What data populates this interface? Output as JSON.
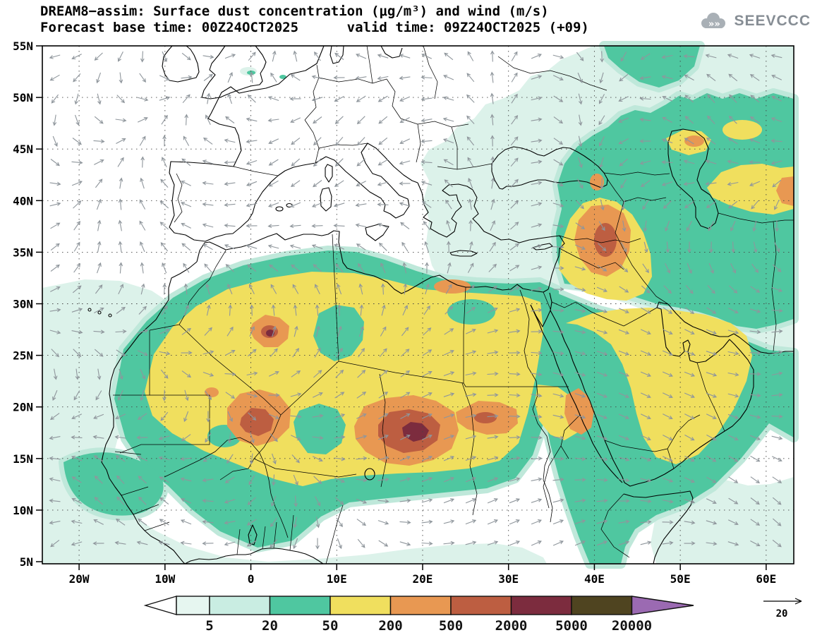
{
  "header": {
    "title_line1": "DREAM8−assim: Surface dust concentration (μg/m³) and wind (m/s)",
    "title_line2": "Forecast base time: 00Z24OCT2025      valid time: 09Z24OCT2025 (+09)",
    "logo_text": "SEEVCCC"
  },
  "axes": {
    "lat_labels": [
      "55N",
      "50N",
      "45N",
      "40N",
      "35N",
      "30N",
      "25N",
      "20N",
      "15N",
      "10N",
      "5N"
    ],
    "lon_labels": [
      "20W",
      "10W",
      "0",
      "10E",
      "20E",
      "30E",
      "40E",
      "50E",
      "60E"
    ]
  },
  "legend": {
    "levels": [
      "5",
      "20",
      "50",
      "200",
      "500",
      "2000",
      "5000",
      "20000"
    ],
    "colors": [
      "#e6f6f0",
      "#c9ede2",
      "#4fc7a0",
      "#f0df5e",
      "#e89852",
      "#bd5e41",
      "#7c2c3e",
      "#4f4420"
    ],
    "arrow_left_color": "#ffffff",
    "arrow_right_color": "#9b6ab2"
  },
  "wind_reference": {
    "value": "20"
  },
  "chart_data": {
    "type": "filled_contour_map",
    "field": "Surface dust concentration",
    "units": "μg/m³",
    "wind_units": "m/s",
    "model": "DREAM8-assim",
    "forecast_base_time": "00Z24OCT2025",
    "valid_time": "09Z24OCT2025",
    "forecast_hour": 9,
    "lon_range": [
      -25,
      63
    ],
    "lat_range": [
      5,
      55
    ],
    "graticule": {
      "lat_step_deg": 5,
      "lon_step_deg": 10
    },
    "contour_levels": [
      5,
      20,
      50,
      200,
      500,
      2000,
      5000,
      20000
    ],
    "palette": [
      "#ffffff",
      "#e6f6f0",
      "#c9ede2",
      "#4fc7a0",
      "#f0df5e",
      "#e89852",
      "#bd5e41",
      "#7c2c3e",
      "#4f4420",
      "#9b6ab2"
    ],
    "wind_reference_ms": 20,
    "legend_position": "bottom",
    "notable_maxima": [
      {
        "area": "southern Algeria / northern Mali (about 0-4E, 16-20N)",
        "concentration_range": "2000-5000"
      },
      {
        "area": "Chad / Niger (about 14-20E, 14-18N)",
        "concentration_range": "2000-5000"
      },
      {
        "area": "central Algeria (about 2E, 26N)",
        "concentration_range": "2000-5000"
      },
      {
        "area": "Iraq / Syria (about 38-43E, 29-35N)",
        "concentration_range": "500-2000"
      }
    ],
    "broad_features": [
      "Yellow band (50-200) covering most of the Sahara and Arabian peninsula",
      "Teal band (20-50) fringing the dust plume over the Sahel, Atlantic coast, Middle East, Iran and Caspian region",
      "Pale cyan (5-20) over the eastern Atlantic, Gulf of Guinea, eastern Mediterranean, Black Sea / Caucasus and Arabian Sea"
    ]
  }
}
